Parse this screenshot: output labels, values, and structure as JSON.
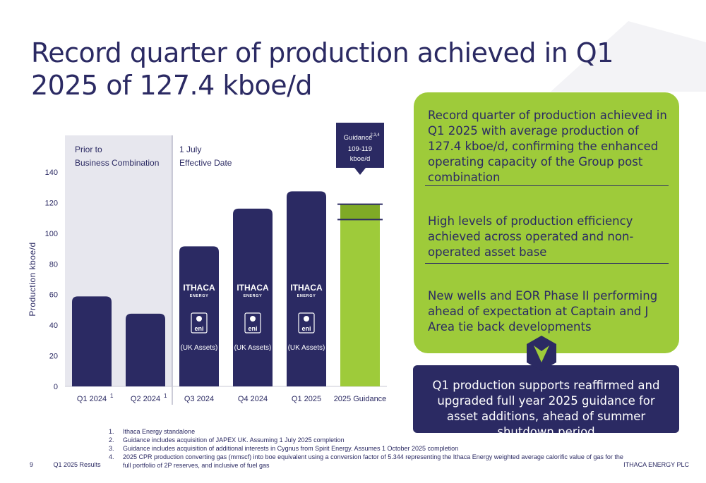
{
  "title": "Record quarter of production achieved in Q1 2025 of 127.4 kboe/d",
  "chart_data": {
    "type": "bar",
    "ylabel": "Production kboe/d",
    "ylim": [
      0,
      140
    ],
    "yticks": [
      0,
      20,
      40,
      60,
      80,
      100,
      120,
      140
    ],
    "categories": [
      "Q1 2024",
      "Q2 2024",
      "Q3 2024",
      "Q4 2024",
      "Q1 2025",
      "2025 Guidance"
    ],
    "category_superscripts": [
      "1",
      "1",
      "",
      "",
      "",
      ""
    ],
    "values": [
      58.8,
      47.5,
      91.5,
      116.1,
      127.4,
      119
    ],
    "guidance_range": [
      109,
      119
    ],
    "bar_colors": [
      "#2b2a63",
      "#2b2a63",
      "#2b2a63",
      "#2b2a63",
      "#2b2a63",
      "#9ecb3a"
    ],
    "bar_logo_text": [
      "ITHACA",
      "ENERGY",
      "eni",
      "(UK Assets)"
    ],
    "region_labels": [
      {
        "line1": "Prior to",
        "line2": "Business Combination"
      },
      {
        "line1": "1 July",
        "line2": "Effective Date"
      }
    ],
    "guidance_callout": {
      "line1": "Guidance",
      "sup": "2,3,4",
      "line2": "109-119",
      "line3": "kboe/d"
    }
  },
  "highlights": [
    "Record quarter of production achieved in Q1 2025 with average production of 127.4 kboe/d, confirming the enhanced operating capacity of the Group post combination",
    "High levels of production efficiency achieved across operated and non-operated asset base",
    "New wells and EOR Phase II performing ahead of expectation at Captain and J Area tie back developments"
  ],
  "summary": "Q1 production supports reaffirmed and upgraded full year 2025 guidance for asset additions, ahead of summer shutdown period",
  "footnotes": [
    {
      "num": "1.",
      "text": "Ithaca Energy standalone"
    },
    {
      "num": "2.",
      "text": "Guidance includes acquisition of JAPEX UK. Assuming 1 July 2025 completion"
    },
    {
      "num": "3.",
      "text": "Guidance includes acquisition of additional interests in Cygnus from Spirit Energy. Assumes 1 October 2025 completion"
    },
    {
      "num": "4.",
      "text": "2025 CPR production converting gas (mmscf) into boe equivalent using a conversion factor of 5.344 representing the Ithaca Energy weighted average calorific value of gas for the full portfolio of 2P reserves, and inclusive of fuel gas"
    }
  ],
  "footer": {
    "page": "9",
    "report": "Q1 2025 Results",
    "company": "ITHACA ENERGY PLC"
  },
  "colors": {
    "navy": "#2b2a63",
    "green": "#9ecb3a",
    "shade": "#e7e7ee"
  }
}
